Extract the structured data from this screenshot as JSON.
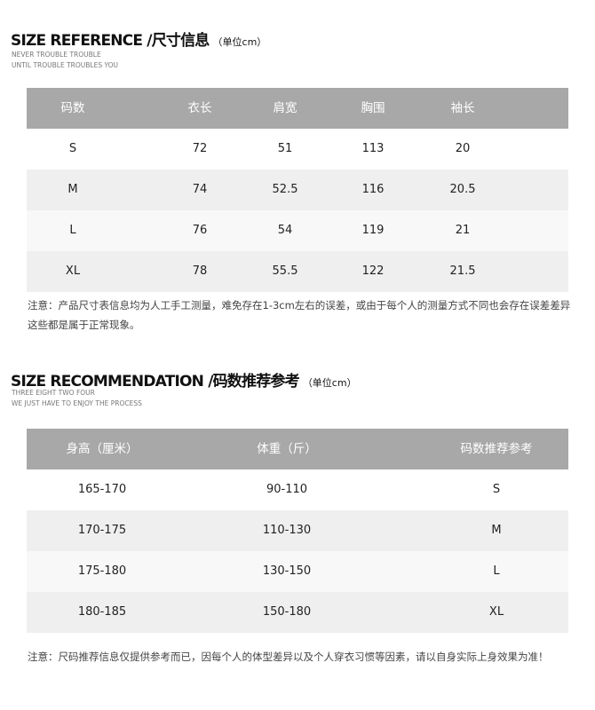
{
  "reference": {
    "title": "SIZE REFERENCE /尺寸信息",
    "unit": "（单位cm）",
    "subtitle": [
      "NEVER TROUBLE TROUBLE",
      "UNTIL TROUBLE TROUBLES YOU"
    ],
    "headers": [
      "码数",
      "衣长",
      "肩宽",
      "胸围",
      "袖长"
    ],
    "rows": [
      [
        "S",
        "72",
        "51",
        "113",
        "20"
      ],
      [
        "M",
        "74",
        "52.5",
        "116",
        "20.5"
      ],
      [
        "L",
        "76",
        "54",
        "119",
        "21"
      ],
      [
        "XL",
        "78",
        "55.5",
        "122",
        "21.5"
      ]
    ],
    "note": "注意：产品尺寸表信息均为人工手工测量，难免存在1-3cm左右的误差，或由于每个人的测量方式不同也会存在误差差异这些都是属于正常现象。"
  },
  "recommendation": {
    "title": "SIZE RECOMMENDATION /码数推荐参考",
    "unit": "（单位cm）",
    "subtitle": [
      "THREE EIGHT TWO FOUR",
      "WE JUST HAVE TO ENJOY THE PROCESS"
    ],
    "headers": [
      "身高（厘米）",
      "体重（斤）",
      "码数推荐参考"
    ],
    "rows": [
      [
        "165-170",
        "90-110",
        "S"
      ],
      [
        "170-175",
        "110-130",
        "M"
      ],
      [
        "175-180",
        "130-150",
        "L"
      ],
      [
        "180-185",
        "150-180",
        "XL"
      ]
    ],
    "note": "注意：尺码推荐信息仅提供参考而已，因每个人的体型差异以及个人穿衣习惯等因素，请以自身实际上身效果为准！"
  }
}
